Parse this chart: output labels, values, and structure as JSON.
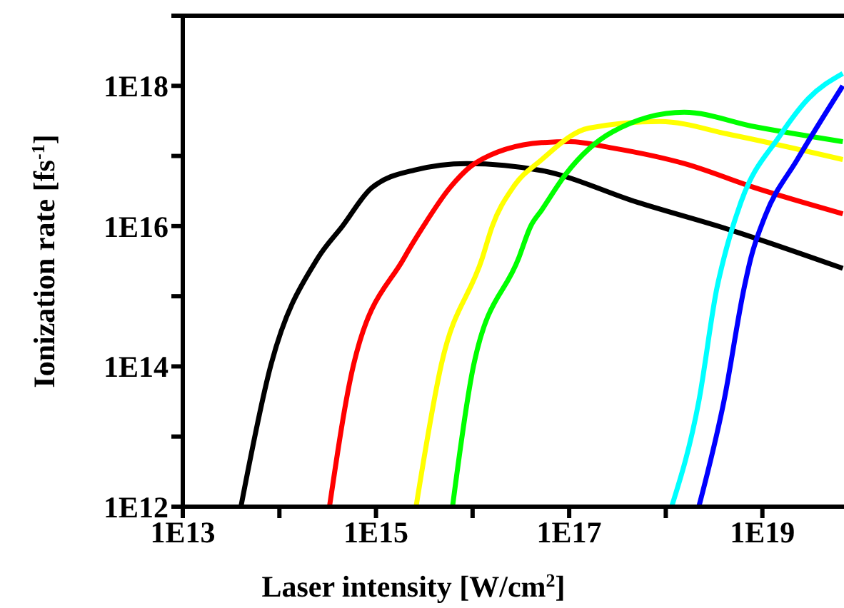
{
  "chart_data": {
    "type": "line",
    "xlabel": "Laser intensity [W/cm$^{2}$]",
    "ylabel": "Ionization rate [fs$^{-1}$]",
    "log": "xy",
    "grid": false,
    "marker": "none",
    "line_style": "solid",
    "xlim": [
      10000000000000.0,
      7e+19
    ],
    "xticks": [
      {
        "value": 10000000000000.0,
        "label": "1E13"
      },
      {
        "value": 100000000000000.0,
        "label": null
      },
      {
        "value": 1000000000000000.0,
        "label": "1E15"
      },
      {
        "value": 1e+16,
        "label": null
      },
      {
        "value": 1e+17,
        "label": "1E17"
      },
      {
        "value": 1e+18,
        "label": null
      },
      {
        "value": 1e+19,
        "label": "1E19"
      }
    ],
    "ylim": [
      1000000000000.0,
      1e+19
    ],
    "yticks": [
      {
        "value": 1000000000000.0,
        "label": "1E12"
      },
      {
        "value": 10000000000000.0,
        "label": null
      },
      {
        "value": 100000000000000.0,
        "label": "1E14"
      },
      {
        "value": 1000000000000000.0,
        "label": null
      },
      {
        "value": 1e+16,
        "label": "1E16"
      },
      {
        "value": 1e+17,
        "label": null
      },
      {
        "value": 1e+18,
        "label": "1E18"
      },
      {
        "value": 1e+19,
        "label": null
      }
    ],
    "series": [
      {
        "color": "#000000",
        "x": [
          40000000000000.0,
          81000000000000.0,
          250000000000000.0,
          450000000000000.0,
          900000000000000.0,
          2500000000000000.0,
          8700000000000000.0,
          5.2e+16,
          5e+17,
          4.8e+18,
          6.8e+19
        ],
        "values": [
          1000000000000.0,
          100000000000000.0,
          3500000000000000.0,
          1e+16,
          3.5e+16,
          6.3e+16,
          7.8e+16,
          6.2e+16,
          2.2e+16,
          8700000000000000.0,
          2500000000000000.0
        ]
      },
      {
        "color": "#ff0000",
        "x": [
          330000000000000.0,
          580000000000000.0,
          1950000000000000.0,
          3100000000000000.0,
          5800000000000000.0,
          1.05e+16,
          5.2e+16,
          1e+17,
          2.8e+17,
          1.55e+18,
          8.5e+18,
          6.8e+19
        ],
        "values": [
          1000000000000.0,
          100000000000000.0,
          3500000000000000.0,
          1e+16,
          3.5e+16,
          7.8e+16,
          1.55e+17,
          1.6e+17,
          1.3e+17,
          7.8e+16,
          3.5e+16,
          1.5e+16
        ]
      },
      {
        "color": "#ffff00",
        "x": [
          2600000000000000.0,
          4700000000000000.0,
          1.26e+16,
          1.6e+16,
          2.6e+16,
          5.2e+16,
          1.6e+17,
          8.7e+17,
          4.8e+18,
          6.8e+19
        ],
        "values": [
          1000000000000.0,
          100000000000000.0,
          3500000000000000.0,
          1e+16,
          3.5e+16,
          8.9e+16,
          2.5e+17,
          3.1e+17,
          2e+17,
          8.9e+16
        ]
      },
      {
        "color": "#00ff00",
        "x": [
          6200000000000000.0,
          1.02e+16,
          3e+16,
          4e+16,
          5.2e+16,
          9.3e+16,
          2.8e+17,
          1.55e+18,
          8.5e+18,
          6.8e+19
        ],
        "values": [
          1000000000000.0,
          100000000000000.0,
          3500000000000000.0,
          1e+16,
          1.7e+16,
          5.6e+16,
          2.2e+17,
          4.2e+17,
          2.6e+17,
          1.6e+17
        ]
      },
      {
        "color": "#00ffff",
        "x": [
          1.15e+18,
          2.2e+18,
          3.4e+18,
          4e+18,
          6e+18,
          1.5e+19,
          3e+19,
          6.8e+19
        ],
        "values": [
          1000000000000.0,
          32000000000000.0,
          1350000000000000.0,
          3500000000000000.0,
          2.2e+16,
          1.9e+17,
          6.6e+17,
          1.5e+18
        ]
      },
      {
        "color": "#0000ff",
        "x": [
          2.2e+18,
          4e+18,
          6.5e+18,
          7.6e+18,
          1.07e+19,
          2.3e+19,
          6.8e+19
        ],
        "values": [
          1000000000000.0,
          32000000000000.0,
          1350000000000000.0,
          3500000000000000.0,
          1.4e+16,
          8.9e+16,
          1e+18
        ]
      }
    ]
  }
}
